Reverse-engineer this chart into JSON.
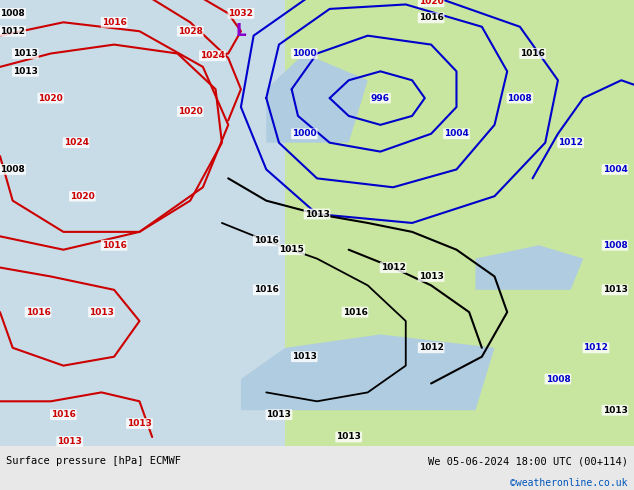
{
  "title_left": "Surface pressure [hPa] ECMWF",
  "title_right": "We 05-06-2024 18:00 UTC (00+114)",
  "credit": "©weatheronline.co.uk",
  "bg_strip": "#e8e8e8",
  "land_color": "#c8e6a0",
  "ocean_color": "#c8dce8",
  "fig_width": 6.34,
  "fig_height": 4.9,
  "dpi": 100,
  "red": "#cc0000",
  "blue": "#0000cc",
  "black": "#000000",
  "purple": "#8800cc"
}
